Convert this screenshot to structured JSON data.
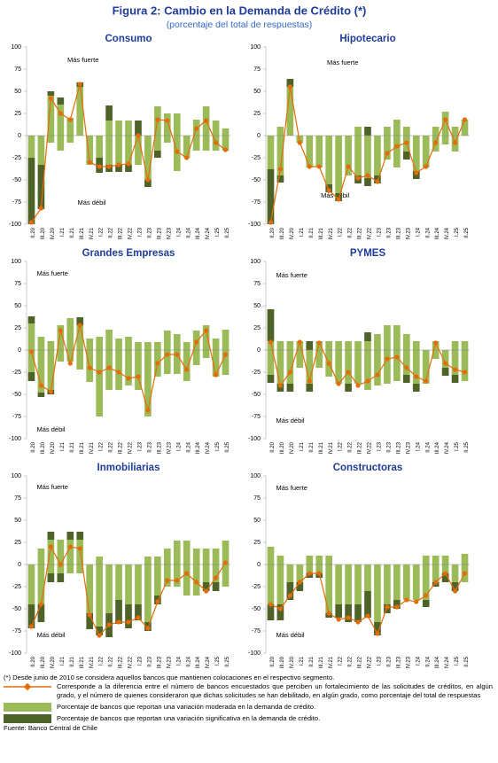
{
  "title": "Figura 2: Cambio en la Demanda de Crédito (*)",
  "subtitle": "(porcentaje del total de respuestas)",
  "categories": [
    "II.20",
    "III.20",
    "IV.20",
    "I.21",
    "II.21",
    "III.21",
    "IV.21",
    "I.22",
    "II.22",
    "III.22",
    "IV.22",
    "I.23",
    "II.23",
    "III.23",
    "IV.23",
    "I.24",
    "II.24",
    "III.24",
    "IV.24",
    "I.25",
    "II.25"
  ],
  "legend": {
    "net": {
      "name": "Corresponde a la diferencia entre el número de bancos encuestados que perciben un fortalecimiento de las solicitudes de créditos, en algún grado, y el número de quienes consideraron que dichas solicitudes se han debilitado, en algún grado, como porcentaje del total de respuestas",
      "color": "#e46c0a"
    },
    "moderate": {
      "name": "Porcentaje de bancos que reportan una variación moderada en la demanda de crédito.",
      "color": "#9bbb59"
    },
    "significant": {
      "name": "Porcentaje de bancos que reportan una variación significativa en la demanda de crédito.",
      "color": "#4f6228"
    }
  },
  "footnote": "(*) Desde junio de 2010 se considera aquellos bancos que mantienen colocaciones en el respectivo segmento.",
  "source": "Fuente: Banco Central de Chile",
  "chart_data": [
    {
      "type": "bar",
      "title": "Consumo",
      "strong_label": "Más fuerte",
      "weak_label": "Más débil",
      "ylim": [
        -100,
        100
      ],
      "yticks": [
        -100,
        -75,
        -50,
        -25,
        0,
        25,
        50,
        75,
        100
      ],
      "moderate": {
        "up": [
          0,
          0,
          45,
          35,
          20,
          55,
          0,
          0,
          17,
          17,
          17,
          0,
          0,
          33,
          25,
          25,
          0,
          18,
          33,
          17,
          8
        ],
        "down": [
          -25,
          -33,
          -8,
          -17,
          -8,
          0,
          -33,
          -25,
          -33,
          -33,
          -33,
          -33,
          -50,
          -17,
          -8,
          -40,
          -25,
          -17,
          -17,
          -17,
          -17
        ]
      },
      "significant": {
        "up": [
          0,
          0,
          5,
          8,
          0,
          5,
          0,
          0,
          17,
          0,
          0,
          17,
          0,
          0,
          0,
          0,
          0,
          0,
          0,
          0,
          0
        ],
        "down": [
          -75,
          -50,
          0,
          0,
          0,
          0,
          0,
          -17,
          -8,
          -8,
          -8,
          0,
          -8,
          -8,
          0,
          0,
          0,
          0,
          0,
          0,
          0
        ]
      },
      "net": [
        -98,
        -82,
        42,
        25,
        18,
        58,
        -30,
        -35,
        -35,
        -33,
        -32,
        0,
        -50,
        18,
        17,
        -18,
        -25,
        8,
        17,
        -8,
        -16
      ]
    },
    {
      "type": "bar",
      "title": "Hipotecario",
      "strong_label": "Más fuerte",
      "weak_label": "Más débil",
      "ylim": [
        -100,
        100
      ],
      "yticks": [
        -100,
        -75,
        -50,
        -25,
        0,
        25,
        50,
        75,
        100
      ],
      "moderate": {
        "up": [
          0,
          10,
          55,
          0,
          0,
          0,
          0,
          0,
          0,
          10,
          0,
          0,
          10,
          18,
          10,
          0,
          0,
          10,
          27,
          10,
          18
        ],
        "down": [
          -38,
          -45,
          0,
          -8,
          -36,
          -36,
          -55,
          -65,
          -45,
          -45,
          -48,
          -45,
          -27,
          -36,
          -18,
          -40,
          -36,
          -18,
          -10,
          -18,
          0
        ]
      },
      "significant": {
        "up": [
          0,
          0,
          9,
          0,
          0,
          0,
          0,
          0,
          0,
          0,
          10,
          0,
          0,
          0,
          0,
          0,
          0,
          0,
          0,
          0,
          0
        ],
        "down": [
          -62,
          -8,
          0,
          0,
          0,
          0,
          -9,
          -9,
          0,
          -9,
          -9,
          -9,
          0,
          0,
          -9,
          -9,
          0,
          0,
          0,
          0,
          0
        ]
      },
      "net": [
        -98,
        -38,
        55,
        -8,
        -35,
        -35,
        -62,
        -72,
        -35,
        -48,
        -45,
        -52,
        -20,
        -12,
        -8,
        -42,
        -35,
        -8,
        18,
        -8,
        18
      ]
    },
    {
      "type": "bar",
      "title": "Grandes Empresas",
      "strong_label": "Más fuerte",
      "weak_label": "Más débil",
      "ylim": [
        -100,
        100
      ],
      "yticks": [
        -100,
        -75,
        -50,
        -25,
        0,
        25,
        50,
        75,
        100
      ],
      "moderate": {
        "up": [
          30,
          15,
          10,
          28,
          36,
          28,
          13,
          15,
          23,
          13,
          15,
          9,
          9,
          9,
          22,
          18,
          9,
          22,
          28,
          13,
          23
        ],
        "down": [
          -25,
          -48,
          -45,
          -13,
          -13,
          -22,
          -36,
          -75,
          -45,
          -45,
          -40,
          -45,
          -75,
          -30,
          -27,
          -27,
          -35,
          -17,
          -9,
          -30,
          -28
        ]
      },
      "significant": {
        "up": [
          8,
          0,
          0,
          0,
          0,
          9,
          0,
          0,
          0,
          0,
          0,
          0,
          0,
          0,
          0,
          0,
          0,
          0,
          0,
          0,
          0
        ],
        "down": [
          -10,
          -5,
          -5,
          0,
          0,
          0,
          0,
          0,
          0,
          0,
          0,
          0,
          0,
          0,
          0,
          0,
          0,
          0,
          0,
          0,
          0
        ]
      },
      "net": [
        -2,
        -40,
        -47,
        22,
        -15,
        28,
        -20,
        -25,
        -20,
        -25,
        -32,
        -30,
        -68,
        -15,
        -5,
        -5,
        -22,
        9,
        22,
        -28,
        -5
      ]
    },
    {
      "type": "bar",
      "title": "PYMES",
      "strong_label": "Más fuerte",
      "weak_label": "Más débil",
      "ylim": [
        -100,
        100
      ],
      "yticks": [
        -100,
        -75,
        -50,
        -25,
        0,
        25,
        50,
        75,
        100
      ],
      "moderate": {
        "up": [
          10,
          10,
          10,
          10,
          0,
          10,
          10,
          10,
          10,
          10,
          10,
          18,
          28,
          28,
          18,
          10,
          0,
          10,
          0,
          10,
          10
        ],
        "down": [
          -28,
          -38,
          -38,
          -20,
          -38,
          -20,
          -30,
          -38,
          -38,
          -38,
          -45,
          -40,
          -38,
          -35,
          -28,
          -38,
          -38,
          -10,
          -20,
          -28,
          -35
        ]
      },
      "significant": {
        "up": [
          36,
          0,
          0,
          0,
          10,
          0,
          0,
          0,
          0,
          0,
          10,
          0,
          0,
          0,
          0,
          0,
          0,
          0,
          0,
          0,
          0
        ],
        "down": [
          -9,
          -9,
          -9,
          0,
          -9,
          0,
          0,
          0,
          -9,
          0,
          0,
          0,
          0,
          0,
          -9,
          -9,
          0,
          0,
          -9,
          -9,
          0
        ]
      },
      "net": [
        9,
        -40,
        -25,
        9,
        -35,
        8,
        -15,
        -38,
        -25,
        -40,
        -35,
        -28,
        -10,
        -8,
        -20,
        -30,
        -35,
        8,
        -15,
        -22,
        -25
      ]
    },
    {
      "type": "bar",
      "title": "Inmobiliarias",
      "strong_label": "Más fuerte",
      "weak_label": "Más débil",
      "ylim": [
        -100,
        100
      ],
      "yticks": [
        -100,
        -75,
        -50,
        -25,
        0,
        25,
        50,
        75,
        100
      ],
      "moderate": {
        "up": [
          0,
          18,
          28,
          28,
          28,
          28,
          0,
          9,
          0,
          0,
          0,
          0,
          9,
          9,
          18,
          27,
          27,
          18,
          18,
          18,
          27
        ],
        "down": [
          -45,
          -45,
          -10,
          -10,
          -10,
          -10,
          -55,
          -70,
          -55,
          -40,
          -45,
          -45,
          -65,
          -35,
          -25,
          -25,
          -35,
          -35,
          -20,
          -20,
          -25
        ]
      },
      "significant": {
        "up": [
          0,
          0,
          9,
          0,
          9,
          9,
          0,
          0,
          0,
          0,
          0,
          0,
          0,
          0,
          0,
          0,
          0,
          0,
          0,
          0,
          0
        ],
        "down": [
          -27,
          -20,
          -10,
          -10,
          0,
          0,
          -18,
          -10,
          -27,
          -27,
          -27,
          -18,
          -10,
          -10,
          0,
          0,
          0,
          0,
          -10,
          -10,
          0
        ]
      },
      "net": [
        -70,
        -45,
        20,
        0,
        20,
        18,
        -57,
        -80,
        -68,
        -65,
        -65,
        -60,
        -72,
        -42,
        -18,
        -18,
        -10,
        -20,
        -30,
        -15,
        2
      ]
    },
    {
      "type": "bar",
      "title": "Constructoras",
      "strong_label": "Más fuerte",
      "weak_label": "Más débil",
      "ylim": [
        -100,
        100
      ],
      "yticks": [
        -100,
        -75,
        -50,
        -25,
        0,
        25,
        50,
        75,
        100
      ],
      "moderate": {
        "up": [
          20,
          10,
          0,
          0,
          10,
          10,
          10,
          0,
          0,
          0,
          0,
          0,
          0,
          0,
          0,
          0,
          10,
          10,
          10,
          0,
          12
        ],
        "down": [
          -45,
          -45,
          -20,
          -20,
          -10,
          -10,
          -55,
          -45,
          -45,
          -45,
          -30,
          -65,
          -45,
          -40,
          -40,
          -40,
          -40,
          -20,
          -10,
          -20,
          -20
        ]
      },
      "significant": {
        "up": [
          0,
          0,
          0,
          0,
          0,
          0,
          0,
          0,
          0,
          0,
          0,
          0,
          0,
          0,
          0,
          0,
          0,
          0,
          0,
          0,
          0
        ],
        "down": [
          -18,
          -18,
          -20,
          -10,
          -5,
          -5,
          -5,
          -15,
          -20,
          -20,
          -30,
          -15,
          -10,
          -10,
          0,
          0,
          -8,
          -5,
          -10,
          -10,
          0
        ]
      },
      "net": [
        -45,
        -50,
        -35,
        -20,
        -10,
        -10,
        -55,
        -62,
        -60,
        -65,
        -58,
        -78,
        -48,
        -48,
        -40,
        -42,
        -35,
        -20,
        -10,
        -30,
        -10
      ]
    }
  ]
}
